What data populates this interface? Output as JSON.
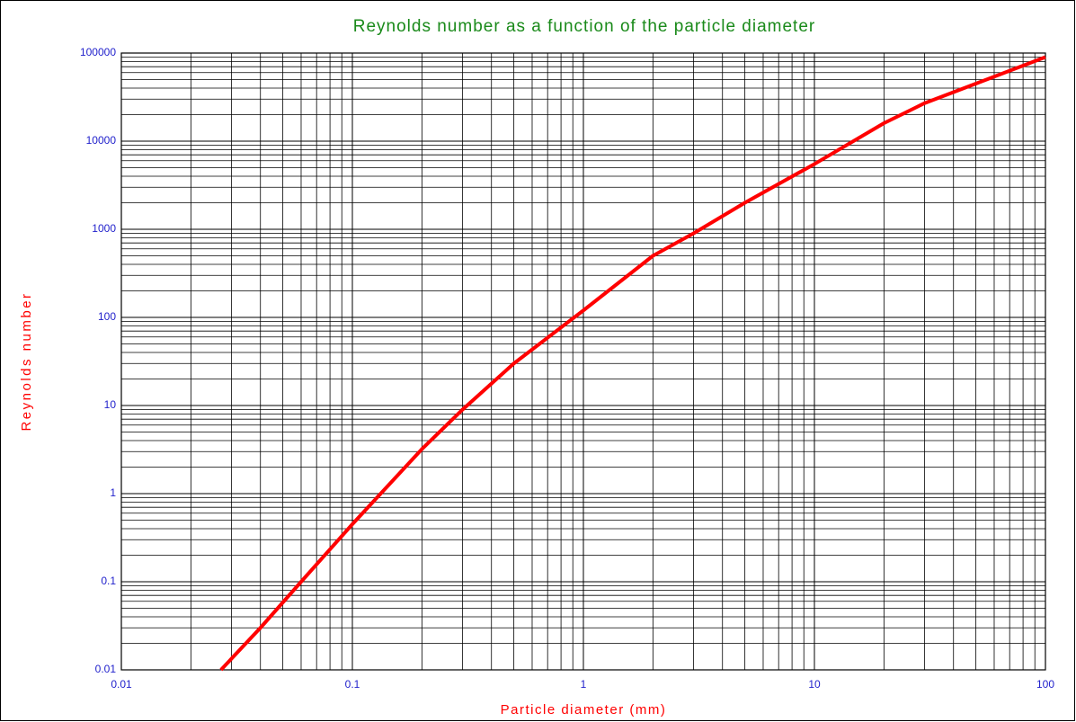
{
  "chart_data": {
    "type": "line",
    "title": "Reynolds number as a function of the particle diameter",
    "x_label": "Particle diameter (mm)",
    "y_label": "Reynolds number",
    "x": [
      0.027,
      0.04,
      0.06,
      0.1,
      0.2,
      0.3,
      0.5,
      1,
      2,
      3,
      5,
      10,
      20,
      30,
      50,
      100
    ],
    "series": [
      {
        "name": "Reynolds number",
        "color": "#ff0000",
        "values": [
          0.01,
          0.03,
          0.1,
          0.45,
          3.2,
          9,
          30,
          120,
          500,
          900,
          2000,
          5500,
          16000,
          27000,
          45000,
          90000
        ]
      }
    ],
    "xlim": [
      0.01,
      100
    ],
    "xticks": [
      0.01,
      0.1,
      1,
      10,
      100
    ],
    "ylim": [
      0.01,
      100000
    ],
    "yticks": [
      0.01,
      0.1,
      1,
      10,
      100,
      1000,
      10000,
      100000
    ],
    "log_x": true,
    "log_y": true,
    "grid": true,
    "title_color": "#1a8a1a",
    "axis_label_color": "#ff0000",
    "y_tick_color": "#2222cc"
  }
}
